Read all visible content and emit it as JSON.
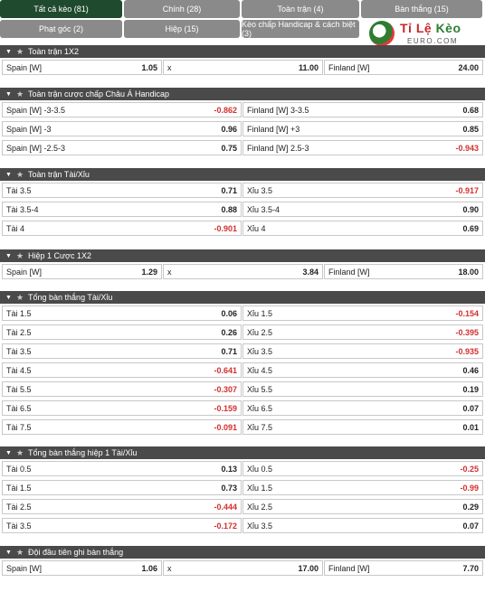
{
  "tabs": [
    {
      "label": "Tất cả kèo (81)",
      "active": true
    },
    {
      "label": "Chính (28)"
    },
    {
      "label": "Toàn trận (4)"
    },
    {
      "label": "Bàn thắng (15)"
    },
    {
      "label": "Phạt góc (2)"
    },
    {
      "label": "Hiệp (15)"
    },
    {
      "label": "Kèo chấp Handicap & cách biệt (3)"
    }
  ],
  "logo": {
    "brand_a": "Tỉ Lệ ",
    "brand_b": "Kèo",
    "sub": "EURO.COM"
  },
  "sections": [
    {
      "title": "Toàn trận 1X2",
      "rows": [
        [
          {
            "label": "Spain [W]",
            "odd": "1.05"
          },
          {
            "label": "x",
            "odd": "11.00"
          },
          {
            "label": "Finland [W]",
            "odd": "24.00"
          }
        ]
      ]
    },
    {
      "title": "Toàn trận cược chấp Châu Á Handicap",
      "rows": [
        [
          {
            "label": "Spain [W] -3-3.5",
            "odd": "-0.862"
          },
          {
            "label": "Finland [W] 3-3.5",
            "odd": "0.68"
          }
        ],
        [
          {
            "label": "Spain [W] -3",
            "odd": "0.96"
          },
          {
            "label": "Finland [W] +3",
            "odd": "0.85"
          }
        ],
        [
          {
            "label": "Spain [W] -2.5-3",
            "odd": "0.75"
          },
          {
            "label": "Finland [W] 2.5-3",
            "odd": "-0.943"
          }
        ]
      ]
    },
    {
      "title": "Toàn trận Tài/Xỉu",
      "rows": [
        [
          {
            "label": "Tài 3.5",
            "odd": "0.71"
          },
          {
            "label": "Xỉu 3.5",
            "odd": "-0.917"
          }
        ],
        [
          {
            "label": "Tài 3.5-4",
            "odd": "0.88"
          },
          {
            "label": "Xỉu 3.5-4",
            "odd": "0.90"
          }
        ],
        [
          {
            "label": "Tài 4",
            "odd": "-0.901"
          },
          {
            "label": "Xỉu 4",
            "odd": "0.69"
          }
        ]
      ]
    },
    {
      "title": "Hiệp 1 Cược 1X2",
      "rows": [
        [
          {
            "label": "Spain [W]",
            "odd": "1.29"
          },
          {
            "label": "x",
            "odd": "3.84"
          },
          {
            "label": "Finland [W]",
            "odd": "18.00"
          }
        ]
      ]
    },
    {
      "title": "Tổng bàn thắng Tài/Xỉu",
      "rows": [
        [
          {
            "label": "Tài 1.5",
            "odd": "0.06"
          },
          {
            "label": "Xỉu 1.5",
            "odd": "-0.154"
          }
        ],
        [
          {
            "label": "Tài 2.5",
            "odd": "0.26"
          },
          {
            "label": "Xỉu 2.5",
            "odd": "-0.395"
          }
        ],
        [
          {
            "label": "Tài 3.5",
            "odd": "0.71"
          },
          {
            "label": "Xỉu 3.5",
            "odd": "-0.935"
          }
        ],
        [
          {
            "label": "Tài 4.5",
            "odd": "-0.641"
          },
          {
            "label": "Xỉu 4.5",
            "odd": "0.46"
          }
        ],
        [
          {
            "label": "Tài 5.5",
            "odd": "-0.307"
          },
          {
            "label": "Xỉu 5.5",
            "odd": "0.19"
          }
        ],
        [
          {
            "label": "Tài 6.5",
            "odd": "-0.159"
          },
          {
            "label": "Xỉu 6.5",
            "odd": "0.07"
          }
        ],
        [
          {
            "label": "Tài 7.5",
            "odd": "-0.091"
          },
          {
            "label": "Xỉu 7.5",
            "odd": "0.01"
          }
        ]
      ]
    },
    {
      "title": "Tổng bàn thắng hiệp 1 Tài/Xỉu",
      "rows": [
        [
          {
            "label": "Tài 0.5",
            "odd": "0.13"
          },
          {
            "label": "Xỉu 0.5",
            "odd": "-0.25"
          }
        ],
        [
          {
            "label": "Tài 1.5",
            "odd": "0.73"
          },
          {
            "label": "Xỉu 1.5",
            "odd": "-0.99"
          }
        ],
        [
          {
            "label": "Tài 2.5",
            "odd": "-0.444"
          },
          {
            "label": "Xỉu 2.5",
            "odd": "0.29"
          }
        ],
        [
          {
            "label": "Tài 3.5",
            "odd": "-0.172"
          },
          {
            "label": "Xỉu 3.5",
            "odd": "0.07"
          }
        ]
      ]
    },
    {
      "title": "Đội đầu tiên ghi bàn thắng",
      "rows": [
        [
          {
            "label": "Spain [W]",
            "odd": "1.06"
          },
          {
            "label": "x",
            "odd": "17.00"
          },
          {
            "label": "Finland [W]",
            "odd": "7.70"
          }
        ]
      ]
    }
  ],
  "icons": {
    "collapse": "caret-down-icon",
    "favorite": "star-icon"
  }
}
